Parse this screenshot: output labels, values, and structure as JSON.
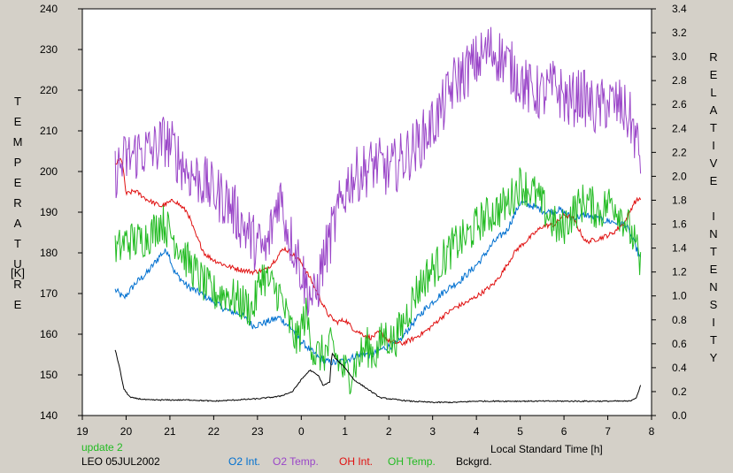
{
  "chart_data": {
    "type": "line",
    "xlabel": "Local Standard Time [h]",
    "ylabel_left": "TEMPERATURE",
    "ylabel_left_unit": "[K]",
    "ylabel_right": "RELATIVE INTENSITY",
    "x_ticks": [
      "19",
      "20",
      "21",
      "22",
      "23",
      "0",
      "1",
      "2",
      "3",
      "4",
      "5",
      "6",
      "7",
      "8"
    ],
    "x_hours": [
      19,
      20,
      21,
      22,
      23,
      24,
      25,
      26,
      27,
      28,
      29,
      30,
      31,
      32
    ],
    "xlim": [
      19,
      32
    ],
    "ylim_left": [
      140,
      240
    ],
    "left_ticks": [
      140,
      150,
      160,
      170,
      180,
      190,
      200,
      210,
      220,
      230,
      240
    ],
    "ylim_right": [
      0.0,
      3.4
    ],
    "right_ticks": [
      "0.0",
      "0.2",
      "0.4",
      "0.6",
      "0.8",
      "1.0",
      "1.2",
      "1.4",
      "1.6",
      "1.8",
      "2.0",
      "2.2",
      "2.4",
      "2.6",
      "2.8",
      "3.0",
      "3.2",
      "3.4"
    ],
    "annotation": "update 2",
    "station": "LEO 05JUL2002",
    "grid": false,
    "series": [
      {
        "name": "O2 Int.",
        "axis": "right",
        "color": "#0070d0",
        "noise": 0.03,
        "points": [
          [
            19.75,
            1.05
          ],
          [
            19.95,
            0.98
          ],
          [
            20.2,
            1.1
          ],
          [
            20.5,
            1.2
          ],
          [
            20.8,
            1.35
          ],
          [
            20.95,
            1.38
          ],
          [
            21.1,
            1.2
          ],
          [
            21.4,
            1.08
          ],
          [
            21.7,
            1.02
          ],
          [
            22.0,
            0.95
          ],
          [
            22.3,
            0.88
          ],
          [
            22.6,
            0.85
          ],
          [
            22.9,
            0.75
          ],
          [
            23.2,
            0.78
          ],
          [
            23.5,
            0.82
          ],
          [
            23.8,
            0.72
          ],
          [
            24.0,
            0.62
          ],
          [
            24.2,
            0.55
          ],
          [
            24.4,
            0.48
          ],
          [
            24.6,
            0.45
          ],
          [
            24.8,
            0.44
          ],
          [
            25.0,
            0.46
          ],
          [
            25.2,
            0.49
          ],
          [
            25.4,
            0.52
          ],
          [
            25.6,
            0.5
          ],
          [
            25.8,
            0.55
          ],
          [
            26.0,
            0.58
          ],
          [
            26.2,
            0.6
          ],
          [
            26.5,
            0.75
          ],
          [
            26.8,
            0.88
          ],
          [
            27.0,
            0.95
          ],
          [
            27.3,
            1.05
          ],
          [
            27.6,
            1.12
          ],
          [
            27.9,
            1.22
          ],
          [
            28.1,
            1.3
          ],
          [
            28.4,
            1.45
          ],
          [
            28.7,
            1.55
          ],
          [
            29.0,
            1.78
          ],
          [
            29.3,
            1.75
          ],
          [
            29.6,
            1.7
          ],
          [
            29.9,
            1.72
          ],
          [
            30.2,
            1.65
          ],
          [
            30.5,
            1.68
          ],
          [
            30.8,
            1.64
          ],
          [
            31.1,
            1.62
          ],
          [
            31.4,
            1.6
          ],
          [
            31.6,
            1.45
          ],
          [
            31.75,
            1.3
          ]
        ]
      },
      {
        "name": "O2 Temp.",
        "axis": "left",
        "color": "#9a46c8",
        "noise": 7,
        "points": [
          [
            19.75,
            200
          ],
          [
            20.0,
            203
          ],
          [
            20.3,
            205
          ],
          [
            20.6,
            205
          ],
          [
            20.9,
            208
          ],
          [
            21.1,
            205
          ],
          [
            21.4,
            200
          ],
          [
            21.7,
            198
          ],
          [
            22.0,
            195
          ],
          [
            22.3,
            193
          ],
          [
            22.6,
            188
          ],
          [
            22.9,
            183
          ],
          [
            23.2,
            180
          ],
          [
            23.5,
            195
          ],
          [
            23.7,
            185
          ],
          [
            23.9,
            180
          ],
          [
            24.1,
            172
          ],
          [
            24.3,
            168
          ],
          [
            24.5,
            178
          ],
          [
            24.7,
            185
          ],
          [
            24.9,
            192
          ],
          [
            25.1,
            198
          ],
          [
            25.4,
            200
          ],
          [
            25.7,
            202
          ],
          [
            26.0,
            200
          ],
          [
            26.3,
            203
          ],
          [
            26.6,
            206
          ],
          [
            26.9,
            210
          ],
          [
            27.2,
            215
          ],
          [
            27.5,
            222
          ],
          [
            27.8,
            225
          ],
          [
            28.0,
            227
          ],
          [
            28.3,
            230
          ],
          [
            28.6,
            228
          ],
          [
            28.9,
            224
          ],
          [
            29.2,
            220
          ],
          [
            29.5,
            219
          ],
          [
            29.8,
            221
          ],
          [
            30.1,
            217
          ],
          [
            30.4,
            219
          ],
          [
            30.7,
            215
          ],
          [
            31.0,
            217
          ],
          [
            31.3,
            216
          ],
          [
            31.55,
            212
          ],
          [
            31.75,
            203
          ]
        ]
      },
      {
        "name": "OH Int.",
        "axis": "right",
        "color": "#e01010",
        "noise": 0.02,
        "points": [
          [
            19.75,
            2.1
          ],
          [
            19.9,
            2.15
          ],
          [
            20.0,
            1.85
          ],
          [
            20.2,
            1.88
          ],
          [
            20.5,
            1.8
          ],
          [
            20.8,
            1.75
          ],
          [
            21.1,
            1.8
          ],
          [
            21.4,
            1.7
          ],
          [
            21.6,
            1.5
          ],
          [
            21.8,
            1.35
          ],
          [
            22.0,
            1.3
          ],
          [
            22.3,
            1.25
          ],
          [
            22.6,
            1.22
          ],
          [
            22.9,
            1.2
          ],
          [
            23.2,
            1.22
          ],
          [
            23.4,
            1.3
          ],
          [
            23.6,
            1.4
          ],
          [
            23.8,
            1.35
          ],
          [
            24.0,
            1.28
          ],
          [
            24.2,
            1.15
          ],
          [
            24.4,
            1.0
          ],
          [
            24.6,
            0.85
          ],
          [
            24.8,
            0.78
          ],
          [
            25.0,
            0.8
          ],
          [
            25.2,
            0.72
          ],
          [
            25.4,
            0.68
          ],
          [
            25.6,
            0.65
          ],
          [
            25.8,
            0.7
          ],
          [
            26.0,
            0.62
          ],
          [
            26.3,
            0.6
          ],
          [
            26.6,
            0.65
          ],
          [
            26.9,
            0.72
          ],
          [
            27.2,
            0.82
          ],
          [
            27.5,
            0.9
          ],
          [
            27.8,
            0.95
          ],
          [
            28.1,
            1.02
          ],
          [
            28.4,
            1.1
          ],
          [
            28.6,
            1.2
          ],
          [
            28.9,
            1.38
          ],
          [
            29.2,
            1.48
          ],
          [
            29.5,
            1.58
          ],
          [
            29.8,
            1.6
          ],
          [
            30.0,
            1.68
          ],
          [
            30.2,
            1.65
          ],
          [
            30.5,
            1.45
          ],
          [
            30.8,
            1.48
          ],
          [
            31.1,
            1.52
          ],
          [
            31.4,
            1.62
          ],
          [
            31.6,
            1.78
          ],
          [
            31.75,
            1.82
          ]
        ]
      },
      {
        "name": "OH Temp.",
        "axis": "left",
        "color": "#22bb22",
        "noise": 5,
        "points": [
          [
            19.75,
            180
          ],
          [
            20.0,
            183
          ],
          [
            20.3,
            183
          ],
          [
            20.6,
            185
          ],
          [
            20.8,
            188
          ],
          [
            21.0,
            185
          ],
          [
            21.2,
            182
          ],
          [
            21.4,
            178
          ],
          [
            21.6,
            175
          ],
          [
            21.8,
            172
          ],
          [
            22.0,
            170
          ],
          [
            22.3,
            170
          ],
          [
            22.6,
            168
          ],
          [
            22.9,
            166
          ],
          [
            23.1,
            175
          ],
          [
            23.3,
            172
          ],
          [
            23.5,
            170
          ],
          [
            23.7,
            163
          ],
          [
            23.9,
            158
          ],
          [
            24.1,
            165
          ],
          [
            24.3,
            155
          ],
          [
            24.5,
            155
          ],
          [
            24.7,
            157
          ],
          [
            24.9,
            152
          ],
          [
            25.1,
            150
          ],
          [
            25.3,
            154
          ],
          [
            25.5,
            157
          ],
          [
            25.7,
            155
          ],
          [
            25.9,
            160
          ],
          [
            26.1,
            158
          ],
          [
            26.3,
            162
          ],
          [
            26.6,
            170
          ],
          [
            26.9,
            175
          ],
          [
            27.2,
            178
          ],
          [
            27.5,
            182
          ],
          [
            27.8,
            184
          ],
          [
            28.1,
            188
          ],
          [
            28.4,
            190
          ],
          [
            28.7,
            192
          ],
          [
            29.0,
            197
          ],
          [
            29.3,
            195
          ],
          [
            29.6,
            190
          ],
          [
            29.9,
            185
          ],
          [
            30.2,
            190
          ],
          [
            30.5,
            193
          ],
          [
            30.8,
            190
          ],
          [
            31.1,
            193
          ],
          [
            31.4,
            188
          ],
          [
            31.6,
            183
          ],
          [
            31.75,
            176
          ]
        ]
      },
      {
        "name": "Bckgrd.",
        "axis": "right",
        "color": "#000000",
        "noise": 0.005,
        "points": [
          [
            19.75,
            0.55
          ],
          [
            19.85,
            0.4
          ],
          [
            19.95,
            0.22
          ],
          [
            20.1,
            0.15
          ],
          [
            20.5,
            0.13
          ],
          [
            21.0,
            0.13
          ],
          [
            21.5,
            0.13
          ],
          [
            22.0,
            0.12
          ],
          [
            22.5,
            0.13
          ],
          [
            23.0,
            0.14
          ],
          [
            23.5,
            0.16
          ],
          [
            23.8,
            0.2
          ],
          [
            24.0,
            0.3
          ],
          [
            24.2,
            0.38
          ],
          [
            24.4,
            0.33
          ],
          [
            24.5,
            0.25
          ],
          [
            24.65,
            0.28
          ],
          [
            24.7,
            0.52
          ],
          [
            24.8,
            0.47
          ],
          [
            25.0,
            0.4
          ],
          [
            25.2,
            0.3
          ],
          [
            25.4,
            0.25
          ],
          [
            25.6,
            0.2
          ],
          [
            25.8,
            0.15
          ],
          [
            26.0,
            0.14
          ],
          [
            26.5,
            0.12
          ],
          [
            27.0,
            0.11
          ],
          [
            27.5,
            0.11
          ],
          [
            28.0,
            0.12
          ],
          [
            28.5,
            0.12
          ],
          [
            29.0,
            0.12
          ],
          [
            29.5,
            0.12
          ],
          [
            30.0,
            0.12
          ],
          [
            30.5,
            0.12
          ],
          [
            31.0,
            0.12
          ],
          [
            31.5,
            0.12
          ],
          [
            31.65,
            0.15
          ],
          [
            31.75,
            0.25
          ]
        ]
      }
    ]
  }
}
